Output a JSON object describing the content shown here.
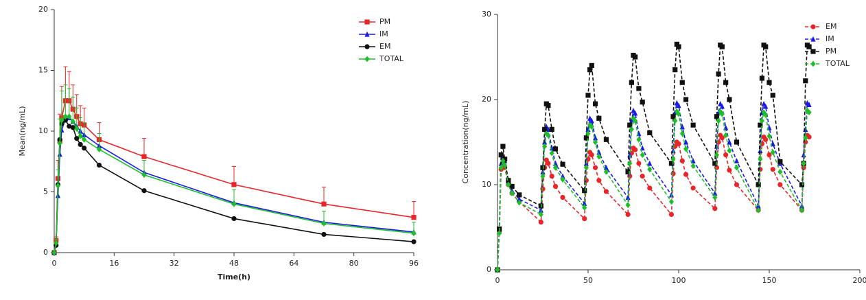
{
  "chart_data": [
    {
      "type": "line",
      "xlabel": "Time(h)",
      "ylabel": "Mean(ng/mL)",
      "x": [
        0,
        0.5,
        1,
        1.5,
        2,
        3,
        4,
        5,
        6,
        7,
        8,
        12,
        24,
        48,
        72,
        96
      ],
      "xlim": [
        0,
        96
      ],
      "xticks": [
        0,
        16,
        32,
        48,
        64,
        80,
        96
      ],
      "ylim": [
        0,
        20
      ],
      "yticks": [
        0,
        5,
        10,
        15,
        20
      ],
      "linestyle": "solid",
      "legend": "upper right",
      "series": [
        {
          "name": "PM",
          "color": "#e8262a",
          "marker": "square",
          "values": [
            0,
            1.0,
            6.1,
            9.2,
            11.1,
            12.5,
            12.5,
            11.8,
            11.2,
            10.6,
            10.5,
            9.3,
            7.9,
            5.6,
            4.0,
            2.9
          ],
          "errors": [
            0,
            0.3,
            1.5,
            2.2,
            2.6,
            2.8,
            2.4,
            2.0,
            1.8,
            1.5,
            1.4,
            1.4,
            1.5,
            1.5,
            1.4,
            1.3
          ]
        },
        {
          "name": "IM",
          "color": "#1a1ae6",
          "marker": "triangle",
          "values": [
            0,
            0.8,
            4.7,
            8.1,
            10.1,
            11.0,
            11.1,
            10.8,
            10.4,
            10.0,
            9.7,
            8.8,
            6.6,
            4.1,
            2.5,
            1.7
          ]
        },
        {
          "name": "EM",
          "color": "#111111",
          "marker": "circle",
          "values": [
            0,
            0.6,
            5.6,
            9.3,
            10.6,
            10.9,
            10.4,
            10.3,
            9.4,
            8.9,
            8.6,
            7.2,
            5.1,
            2.8,
            1.5,
            0.9
          ]
        },
        {
          "name": "TOTAL",
          "color": "#1fbf2a",
          "marker": "diamond",
          "values": [
            0,
            0.8,
            5.5,
            9.0,
            10.9,
            11.2,
            11.2,
            10.8,
            10.2,
            9.6,
            9.3,
            8.5,
            6.4,
            4.0,
            2.4,
            1.6
          ],
          "errors": [
            0,
            0.3,
            1.3,
            2.0,
            2.4,
            2.6,
            2.3,
            2.0,
            1.7,
            1.5,
            1.4,
            1.3,
            1.2,
            1.2,
            1.0,
            0.9
          ]
        }
      ]
    },
    {
      "type": "line",
      "ylabel": "Concentration(ng/mL)",
      "x": [
        0,
        1,
        2,
        3,
        4,
        6,
        8,
        12,
        24,
        25,
        26,
        27,
        28,
        30,
        32,
        36,
        48,
        49,
        50,
        51,
        52,
        54,
        56,
        60,
        72,
        73,
        74,
        75,
        76,
        78,
        80,
        84,
        96,
        97,
        98,
        99,
        100,
        102,
        104,
        108,
        120,
        121,
        122,
        123,
        124,
        126,
        128,
        132,
        144,
        145,
        146,
        147,
        148,
        150,
        152,
        156,
        168,
        169,
        170,
        171,
        172
      ],
      "xlim": [
        0,
        200
      ],
      "xticks": [
        0,
        50,
        100,
        150,
        200
      ],
      "ylim": [
        0,
        30
      ],
      "yticks": [
        0,
        10,
        20,
        30
      ],
      "linestyle": "dashed",
      "legend": "upper right",
      "series": [
        {
          "name": "EM",
          "color": "#e8262a",
          "marker": "circle",
          "values": [
            0,
            4.5,
            11.8,
            12.5,
            12.0,
            10.0,
            9.0,
            8.0,
            5.6,
            9.5,
            12.0,
            12.9,
            12.5,
            11.0,
            9.8,
            8.5,
            6.0,
            10.5,
            13.0,
            13.8,
            13.5,
            12.0,
            10.5,
            9.2,
            6.5,
            11.0,
            13.7,
            14.3,
            14.1,
            12.5,
            11.0,
            9.6,
            6.5,
            11.3,
            14.5,
            15.0,
            14.8,
            12.8,
            11.2,
            9.6,
            7.2,
            12.0,
            15.0,
            15.8,
            15.5,
            13.5,
            11.7,
            10.0,
            7.0,
            11.8,
            14.8,
            15.6,
            15.3,
            13.5,
            11.8,
            10.0,
            7.0,
            12.0,
            15.0,
            15.8,
            15.6
          ]
        },
        {
          "name": "IM",
          "color": "#1a1ae6",
          "marker": "triangle",
          "values": [
            0,
            4.5,
            12.5,
            13.2,
            12.8,
            10.3,
            9.3,
            8.3,
            7.0,
            11.5,
            15.0,
            16.8,
            16.5,
            14.3,
            12.5,
            11.0,
            7.8,
            12.5,
            16.5,
            17.8,
            17.5,
            15.5,
            13.8,
            12.0,
            8.5,
            13.5,
            17.5,
            18.7,
            18.4,
            16.0,
            14.3,
            12.5,
            8.8,
            14.0,
            18.5,
            19.6,
            19.3,
            16.8,
            15.0,
            12.8,
            9.0,
            14.5,
            18.5,
            19.5,
            19.2,
            16.7,
            15.0,
            12.8,
            7.5,
            14.0,
            18.5,
            19.5,
            19.2,
            16.7,
            14.8,
            12.5,
            7.5,
            13.5,
            16.5,
            19.6,
            19.4
          ]
        },
        {
          "name": "PM",
          "color": "#111111",
          "marker": "square",
          "values": [
            0,
            4.8,
            13.5,
            14.5,
            13.0,
            10.5,
            9.8,
            8.8,
            7.5,
            12.0,
            16.5,
            19.5,
            19.3,
            16.5,
            14.2,
            12.4,
            9.3,
            15.5,
            20.5,
            23.5,
            24.0,
            19.5,
            17.8,
            15.3,
            11.5,
            17.0,
            22.0,
            25.2,
            25.0,
            21.3,
            19.7,
            16.1,
            12.5,
            18.0,
            23.5,
            26.5,
            26.2,
            22.0,
            20.0,
            17.0,
            12.5,
            18.0,
            23.0,
            26.4,
            26.2,
            22.0,
            20.0,
            15.0,
            10.0,
            17.0,
            22.5,
            26.4,
            26.2,
            22.0,
            20.5,
            12.7,
            10.0,
            12.5,
            22.2,
            26.4,
            26.2
          ]
        },
        {
          "name": "TOTAL",
          "color": "#1fbf2a",
          "marker": "diamond",
          "values": [
            0,
            4.3,
            12.0,
            12.8,
            12.3,
            10.0,
            9.0,
            7.9,
            6.5,
            11.0,
            14.5,
            16.0,
            15.8,
            13.7,
            12.0,
            10.6,
            7.3,
            12.0,
            16.0,
            17.0,
            16.8,
            15.0,
            13.3,
            11.5,
            7.6,
            12.5,
            16.5,
            17.8,
            17.5,
            15.3,
            13.5,
            11.8,
            8.0,
            13.0,
            17.5,
            18.6,
            18.3,
            16.0,
            14.2,
            12.2,
            8.5,
            13.5,
            17.5,
            18.6,
            18.3,
            15.8,
            14.0,
            12.0,
            7.0,
            13.0,
            17.5,
            18.5,
            18.2,
            15.7,
            13.8,
            11.5,
            7.0,
            12.5,
            15.5,
            18.7,
            18.5
          ]
        }
      ]
    }
  ]
}
